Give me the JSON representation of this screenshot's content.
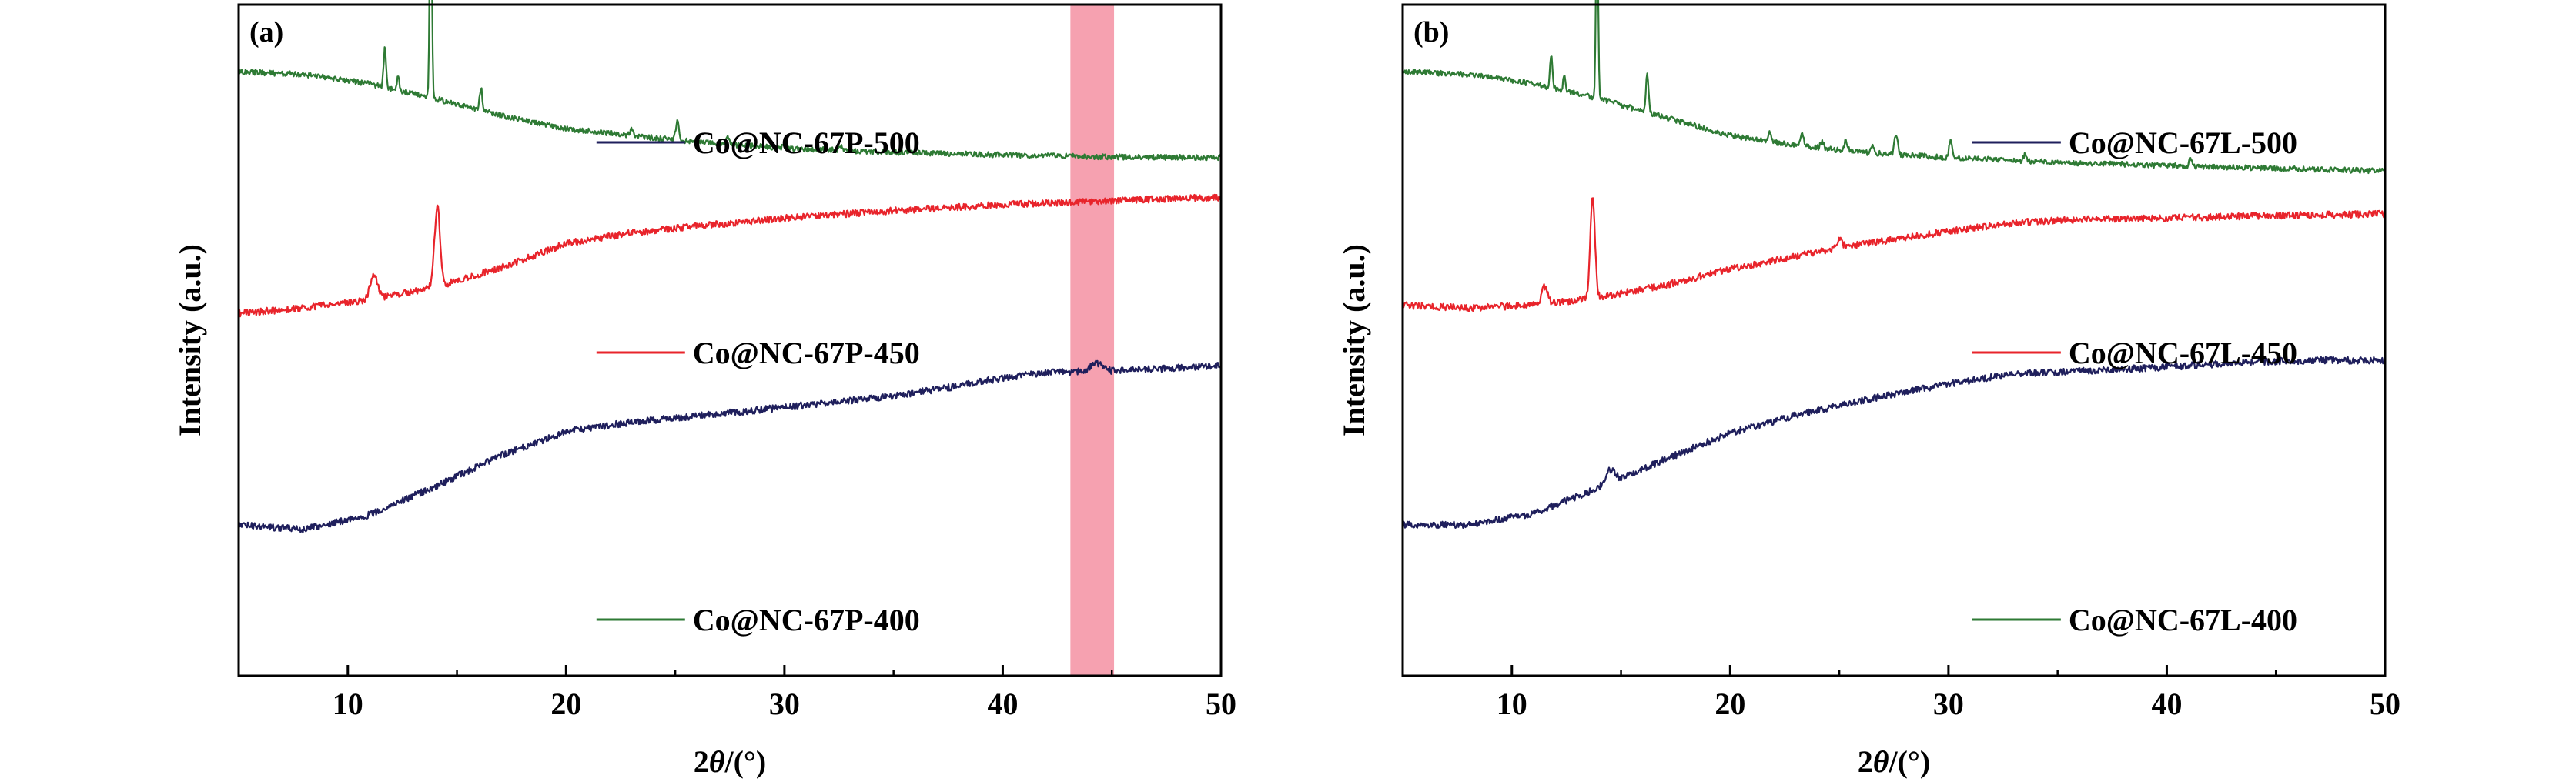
{
  "colors": {
    "navy": "#1f1f5c",
    "red": "#e8242b",
    "green": "#2e7a34",
    "highlight": "#f6a1b0",
    "axis": "#000000"
  },
  "chart_data": [
    {
      "type": "line",
      "panel_label": "(a)",
      "xlabel_prefix": "2",
      "xlabel_theta": "θ",
      "xlabel_suffix": "/(°)",
      "ylabel": "Intensity (a.u.)",
      "xlim": [
        5,
        50
      ],
      "xticks": [
        10,
        20,
        30,
        40,
        50
      ],
      "yticks_shown": false,
      "highlight_band": [
        43.1,
        45.1
      ],
      "series": [
        {
          "name": "Co@NC-67P-500",
          "color": "#1f1f5c",
          "legend_x": 25.8,
          "base": [
            [
              5,
              0.775
            ],
            [
              8,
              0.782
            ],
            [
              11,
              0.76
            ],
            [
              14,
              0.718
            ],
            [
              17,
              0.672
            ],
            [
              20,
              0.636
            ],
            [
              23,
              0.622
            ],
            [
              26,
              0.613
            ],
            [
              30,
              0.6
            ],
            [
              35,
              0.583
            ],
            [
              38,
              0.568
            ],
            [
              40,
              0.556
            ],
            [
              42,
              0.548
            ],
            [
              45,
              0.546
            ],
            [
              50,
              0.538
            ]
          ],
          "peaks": [
            [
              44.3,
              0.012,
              0.4
            ]
          ],
          "noise": 0.005
        },
        {
          "name": "Co@NC-67P-450",
          "color": "#e8242b",
          "legend_x": 25.8,
          "base": [
            [
              5,
              0.46
            ],
            [
              8,
              0.452
            ],
            [
              11,
              0.44
            ],
            [
              14,
              0.421
            ],
            [
              17,
              0.392
            ],
            [
              20,
              0.356
            ],
            [
              23,
              0.34
            ],
            [
              26,
              0.33
            ],
            [
              30,
              0.318
            ],
            [
              35,
              0.307
            ],
            [
              40,
              0.298
            ],
            [
              45,
              0.292
            ],
            [
              50,
              0.287
            ]
          ],
          "peaks": [
            [
              11.2,
              0.035,
              0.25
            ],
            [
              14.1,
              0.12,
              0.18
            ]
          ],
          "noise": 0.005
        },
        {
          "name": "Co@NC-67P-400",
          "color": "#2e7a34",
          "legend_x": 25.8,
          "base": [
            [
              5,
              0.1
            ],
            [
              8,
              0.104
            ],
            [
              11,
              0.118
            ],
            [
              14,
              0.14
            ],
            [
              17,
              0.165
            ],
            [
              20,
              0.185
            ],
            [
              23,
              0.195
            ],
            [
              26,
              0.205
            ],
            [
              30,
              0.214
            ],
            [
              35,
              0.22
            ],
            [
              40,
              0.224
            ],
            [
              45,
              0.227
            ],
            [
              50,
              0.228
            ]
          ],
          "peaks": [
            [
              11.7,
              0.06,
              0.08
            ],
            [
              12.3,
              0.02,
              0.08
            ],
            [
              13.8,
              0.33,
              0.07
            ],
            [
              16.1,
              0.035,
              0.08
            ],
            [
              23.0,
              0.01,
              0.1
            ],
            [
              25.1,
              0.03,
              0.1
            ],
            [
              27.4,
              0.012,
              0.1
            ],
            [
              30.0,
              0.008,
              0.1
            ],
            [
              32.6,
              0.008,
              0.1
            ]
          ],
          "noise": 0.004
        }
      ]
    },
    {
      "type": "line",
      "panel_label": "(b)",
      "xlabel_prefix": "2",
      "xlabel_theta": "θ",
      "xlabel_suffix": "/(°)",
      "ylabel": "Intensity (a.u.)",
      "xlim": [
        5,
        50
      ],
      "xticks": [
        10,
        20,
        30,
        40,
        50
      ],
      "yticks_shown": false,
      "series": [
        {
          "name": "Co@NC-67L-500",
          "color": "#1f1f5c",
          "legend_x": 35.5,
          "base": [
            [
              5,
              0.775
            ],
            [
              8,
              0.775
            ],
            [
              11,
              0.758
            ],
            [
              14,
              0.72
            ],
            [
              17,
              0.678
            ],
            [
              20,
              0.638
            ],
            [
              23,
              0.612
            ],
            [
              26,
              0.59
            ],
            [
              30,
              0.565
            ],
            [
              33,
              0.55
            ],
            [
              36,
              0.546
            ],
            [
              40,
              0.54
            ],
            [
              44,
              0.532
            ],
            [
              47,
              0.53
            ],
            [
              50,
              0.53
            ]
          ],
          "peaks": [
            [
              14.5,
              0.02,
              0.3
            ]
          ],
          "noise": 0.005
        },
        {
          "name": "Co@NC-67L-450",
          "color": "#e8242b",
          "legend_x": 35.5,
          "base": [
            [
              5,
              0.448
            ],
            [
              8,
              0.452
            ],
            [
              11,
              0.448
            ],
            [
              14,
              0.436
            ],
            [
              17,
              0.418
            ],
            [
              20,
              0.394
            ],
            [
              23,
              0.375
            ],
            [
              26,
              0.357
            ],
            [
              30,
              0.338
            ],
            [
              33,
              0.325
            ],
            [
              36,
              0.32
            ],
            [
              40,
              0.318
            ],
            [
              45,
              0.314
            ],
            [
              50,
              0.312
            ]
          ],
          "peaks": [
            [
              11.5,
              0.025,
              0.2
            ],
            [
              13.7,
              0.15,
              0.15
            ],
            [
              25.0,
              0.012,
              0.2
            ]
          ],
          "noise": 0.005
        },
        {
          "name": "Co@NC-67L-400",
          "color": "#2e7a34",
          "legend_x": 35.5,
          "base": [
            [
              5,
              0.1
            ],
            [
              8,
              0.104
            ],
            [
              11,
              0.118
            ],
            [
              14,
              0.14
            ],
            [
              17,
              0.168
            ],
            [
              20,
              0.195
            ],
            [
              23,
              0.21
            ],
            [
              26,
              0.22
            ],
            [
              30,
              0.228
            ],
            [
              35,
              0.235
            ],
            [
              40,
              0.24
            ],
            [
              45,
              0.244
            ],
            [
              50,
              0.248
            ]
          ],
          "peaks": [
            [
              11.8,
              0.05,
              0.08
            ],
            [
              12.4,
              0.02,
              0.08
            ],
            [
              13.9,
              0.28,
              0.07
            ],
            [
              16.2,
              0.06,
              0.08
            ],
            [
              21.8,
              0.012,
              0.1
            ],
            [
              23.3,
              0.02,
              0.1
            ],
            [
              24.2,
              0.01,
              0.1
            ],
            [
              25.3,
              0.015,
              0.1
            ],
            [
              26.5,
              0.01,
              0.1
            ],
            [
              27.6,
              0.03,
              0.1
            ],
            [
              30.1,
              0.025,
              0.1
            ],
            [
              33.5,
              0.01,
              0.1
            ],
            [
              41.1,
              0.012,
              0.1
            ]
          ],
          "noise": 0.004
        }
      ]
    }
  ]
}
